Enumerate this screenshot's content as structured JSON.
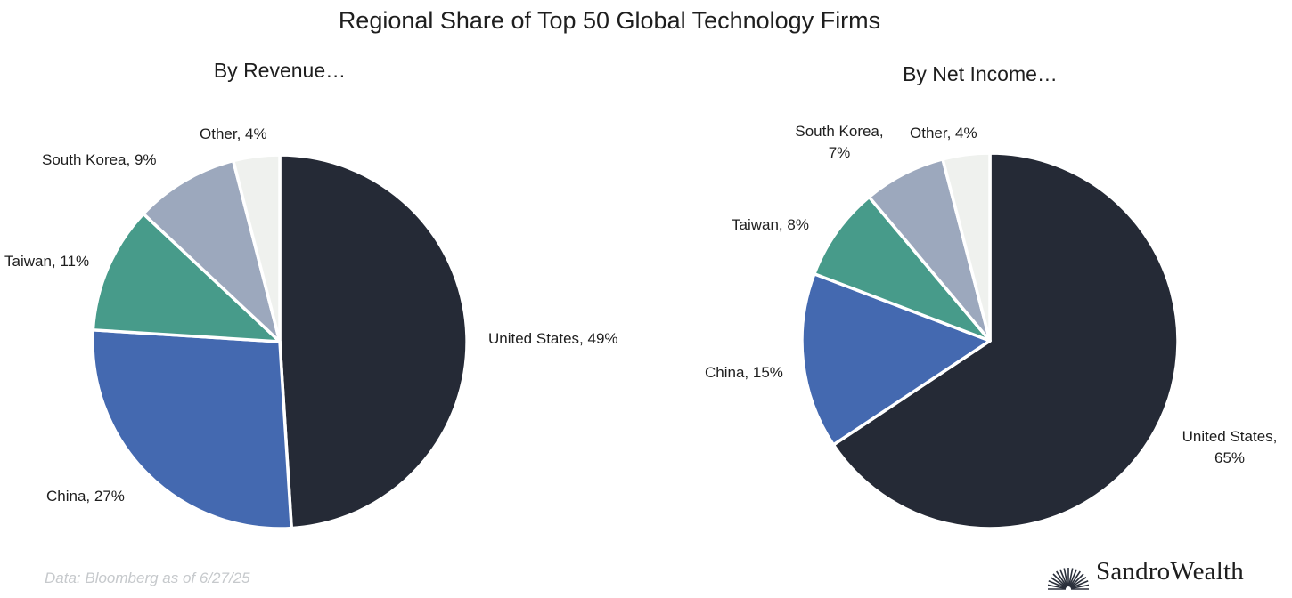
{
  "title": "Regional Share of Top 50 Global Technology Firms",
  "source_note": "Data: Bloomberg as of 6/27/25",
  "brand": "SandroWealth",
  "colors": {
    "United States": "#252a36",
    "China": "#4469b0",
    "Taiwan": "#479b8a",
    "South Korea": "#9ca8bd",
    "Other": "#eff1ee"
  },
  "chart_data": [
    {
      "type": "pie",
      "title": "By Revenue…",
      "slices": [
        {
          "name": "United States",
          "value": 49,
          "label": [
            "United States, 49%"
          ]
        },
        {
          "name": "China",
          "value": 27,
          "label": [
            "China, 27%"
          ]
        },
        {
          "name": "Taiwan",
          "value": 11,
          "label": [
            "Taiwan, 11%"
          ]
        },
        {
          "name": "South Korea",
          "value": 9,
          "label": [
            "South Korea, 9%"
          ]
        },
        {
          "name": "Other",
          "value": 4,
          "label": [
            "Other, 4%"
          ]
        }
      ]
    },
    {
      "type": "pie",
      "title": "By Net Income…",
      "slices": [
        {
          "name": "United States",
          "value": 65,
          "label": [
            "United States,",
            "65%"
          ]
        },
        {
          "name": "China",
          "value": 15,
          "label": [
            "China, 15%"
          ]
        },
        {
          "name": "Taiwan",
          "value": 8,
          "label": [
            "Taiwan, 8%"
          ]
        },
        {
          "name": "South Korea",
          "value": 7,
          "label": [
            "South Korea,",
            "7%"
          ]
        },
        {
          "name": "Other",
          "value": 4,
          "label": [
            "Other, 4%"
          ]
        }
      ]
    }
  ]
}
